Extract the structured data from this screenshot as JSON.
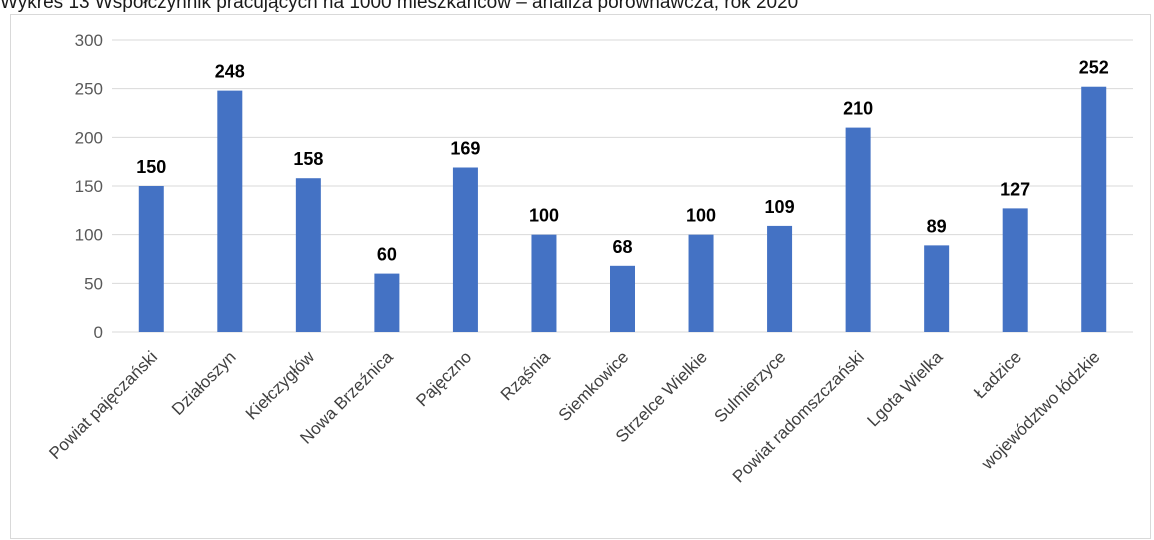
{
  "chart_data": {
    "type": "bar",
    "title": "Wykres 13 Współczynnik pracujących na 1000 mieszkańców – analiza porównawcza, rok 2020",
    "xlabel": "",
    "ylabel": "",
    "categories": [
      "Powiat pajęczański",
      "Działoszyn",
      "Kiełczygłów",
      "Nowa Brzeźnica",
      "Pajęczno",
      "Rząśnia",
      "Siemkowice",
      "Strzelce Wielkie",
      "Sulmierzyce",
      "Powiat radomszczański",
      "Lgota Wielka",
      "Ładzice",
      "województwo łódzkie"
    ],
    "values": [
      150,
      248,
      158,
      60,
      169,
      100,
      68,
      100,
      109,
      210,
      89,
      127,
      252
    ],
    "ylim": [
      0,
      300
    ],
    "yticks": [
      0,
      50,
      100,
      150,
      200,
      250,
      300
    ],
    "grid": true,
    "legend": "none",
    "data_labels": true,
    "bar_color": "#4472c4",
    "grid_color": "#d9d9d9"
  }
}
